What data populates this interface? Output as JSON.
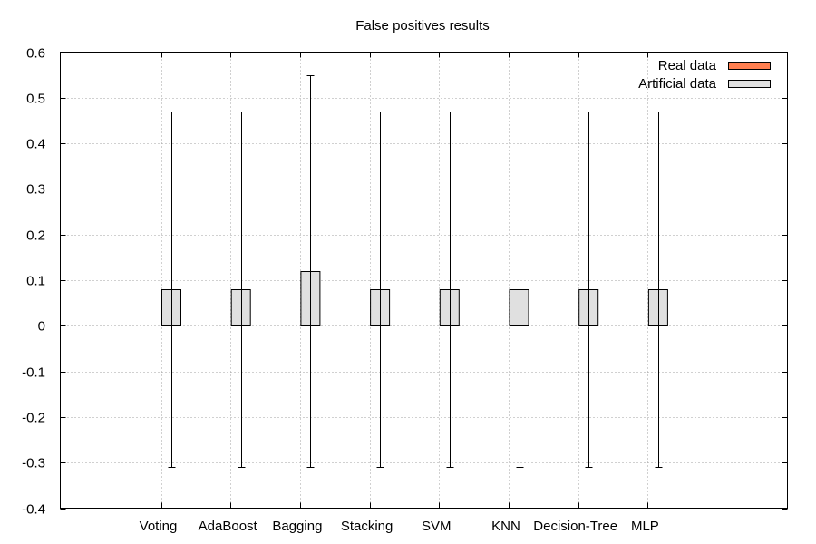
{
  "chart_data": {
    "type": "bar",
    "title": "False positives results",
    "xlabel": "",
    "ylabel": "",
    "ylim": [
      -0.4,
      0.6
    ],
    "yticks": [
      -0.4,
      -0.3,
      -0.2,
      -0.1,
      0,
      0.1,
      0.2,
      0.3,
      0.4,
      0.5,
      0.6
    ],
    "ytick_labels": [
      "-0.4",
      "-0.3",
      "-0.2",
      "-0.1",
      "0",
      "0.1",
      "0.2",
      "0.3",
      "0.4",
      "0.5",
      "0.6"
    ],
    "grid": true,
    "legend_position": "top-right",
    "categories": [
      "Voting",
      "AdaBoost",
      "Bagging",
      "Stacking",
      "SVM",
      "KNN",
      "Decision-Tree",
      "MLP"
    ],
    "series": [
      {
        "name": "Real data",
        "color": "#ff7f50",
        "values": [
          0,
          0,
          0,
          0,
          0,
          0,
          0,
          0
        ]
      },
      {
        "name": "Artificial data",
        "color": "#e0e0e0",
        "values": [
          0.08,
          0.08,
          0.12,
          0.08,
          0.08,
          0.08,
          0.08,
          0.08
        ],
        "error_low": [
          -0.31,
          -0.31,
          -0.31,
          -0.31,
          -0.31,
          -0.31,
          -0.31,
          -0.31
        ],
        "error_high": [
          0.47,
          0.47,
          0.55,
          0.47,
          0.47,
          0.47,
          0.47,
          0.47
        ]
      }
    ]
  }
}
